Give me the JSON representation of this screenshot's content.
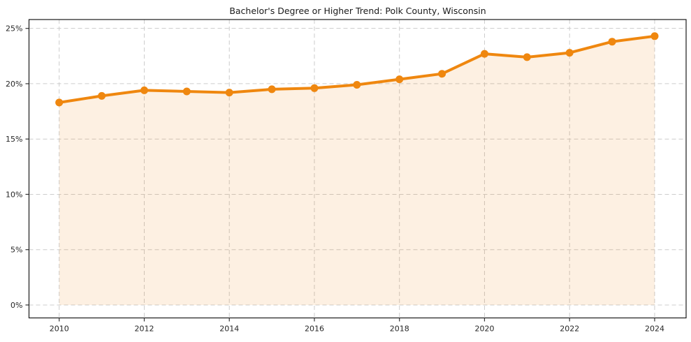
{
  "chart_data": {
    "type": "area-line",
    "title": "Bachelor's Degree or Higher Trend: Polk County, Wisconsin",
    "x": [
      2010,
      2011,
      2012,
      2013,
      2014,
      2015,
      2016,
      2017,
      2018,
      2019,
      2020,
      2021,
      2022,
      2023,
      2024
    ],
    "values": [
      18.3,
      18.9,
      19.4,
      19.3,
      19.2,
      19.5,
      19.6,
      19.9,
      20.4,
      20.9,
      22.7,
      22.4,
      22.8,
      23.8,
      24.3
    ],
    "unit": "%",
    "xlabel": "",
    "ylabel": "",
    "xlim": [
      2009.29,
      2024.74
    ],
    "ylim": [
      -1.17,
      25.8
    ],
    "xticks": {
      "values": [
        2010,
        2012,
        2014,
        2016,
        2018,
        2020,
        2022,
        2024
      ],
      "labels": [
        "2010",
        "2012",
        "2014",
        "2016",
        "2018",
        "2020",
        "2022",
        "2024"
      ]
    },
    "yticks": {
      "values": [
        0,
        5,
        10,
        15,
        20,
        25
      ],
      "labels": [
        "0%",
        "5%",
        "10%",
        "15%",
        "20%",
        "25%"
      ]
    },
    "grid": true,
    "grid_style": "dashed",
    "legend": false,
    "colors": {
      "line": "#ef870f",
      "marker": "#ef870f",
      "fill": "rgba(239, 135, 15, 0.12)",
      "grid": "#cccccc",
      "spine": "#1a1a1a",
      "tick": "#333333",
      "tick_label": "#262626",
      "title": "#1a1a1a",
      "plot_background": "#ffffff",
      "figure_background": "#ffffff"
    }
  }
}
